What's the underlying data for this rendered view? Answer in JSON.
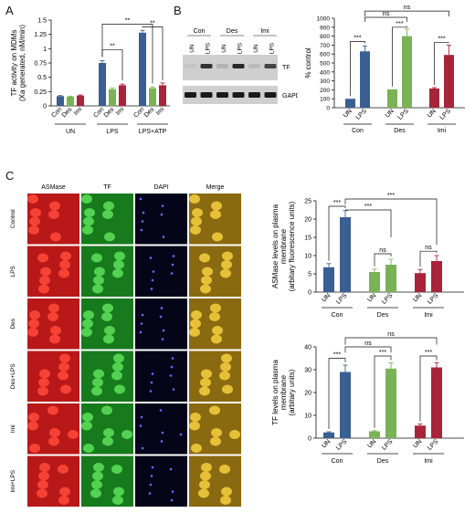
{
  "panels": {
    "A": "A",
    "B": "B",
    "C": "C"
  },
  "colors": {
    "con": "#3a5f93",
    "des": "#7ab356",
    "imi": "#a8243a",
    "grey": "#3a3a3a"
  },
  "chart_data": [
    {
      "panel": "A",
      "type": "bar",
      "ylabel_lines": [
        "TF activity on MDMs",
        "(Xa generated, nM/min)"
      ],
      "ylim": [
        0,
        1.5
      ],
      "yticks": [
        "0",
        "0.25",
        "0.5",
        "0.75",
        "1",
        "1.25",
        "1.5"
      ],
      "categories": [
        "Con",
        "Des",
        "Imi",
        "Con",
        "Des",
        "Imi",
        "Con",
        "Des",
        "Imi"
      ],
      "groups": [
        "UN",
        "LPS",
        "LPS+ATP"
      ],
      "values": [
        0.17,
        0.16,
        0.18,
        0.75,
        0.29,
        0.36,
        1.28,
        0.31,
        0.36
      ],
      "errors": [
        0.01,
        0.01,
        0.01,
        0.04,
        0.02,
        0.02,
        0.04,
        0.02,
        0.04
      ],
      "significance": [
        "**",
        "**",
        "**"
      ]
    },
    {
      "panel": "B",
      "type": "bar",
      "ylabel": "% control",
      "ylim": [
        0,
        1000
      ],
      "yticks": [
        "0",
        "100",
        "200",
        "300",
        "400",
        "500",
        "600",
        "700",
        "800",
        "900",
        "1000"
      ],
      "categories": [
        "UN",
        "LPS",
        "UN",
        "LPS",
        "UN",
        "LPS"
      ],
      "groups": [
        "Con",
        "Des",
        "Imi"
      ],
      "values": [
        100,
        630,
        205,
        800,
        215,
        590
      ],
      "errors": [
        0,
        60,
        0,
        80,
        10,
        110
      ],
      "significance": [
        "***",
        "***",
        "***",
        "ns",
        "ns"
      ]
    },
    {
      "panel": "C1",
      "type": "bar",
      "ylabel_lines": [
        "ASMase levels on plasma",
        "membrane",
        "(arbitary fluorescence units)"
      ],
      "ylim": [
        0,
        25
      ],
      "yticks": [
        "0",
        "5",
        "10",
        "15",
        "20",
        "25"
      ],
      "categories": [
        "UN",
        "LPS",
        "UN",
        "LPS",
        "UN",
        "LPS"
      ],
      "groups": [
        "Con",
        "Des",
        "Imi"
      ],
      "values": [
        6.8,
        20.5,
        5.5,
        7.5,
        5.2,
        8.5
      ],
      "errors": [
        1.0,
        1.8,
        0.8,
        1.5,
        1.0,
        1.5
      ],
      "significance": [
        "***",
        "ns",
        "ns",
        "***",
        "***"
      ]
    },
    {
      "panel": "C2",
      "type": "bar",
      "ylabel_lines": [
        "TF levels on plasma",
        "membrane",
        "(arbitary units)"
      ],
      "ylim": [
        0,
        40
      ],
      "yticks": [
        "0",
        "10",
        "20",
        "30",
        "40"
      ],
      "categories": [
        "UN",
        "LPS",
        "UN",
        "LPS",
        "UN",
        "LPS"
      ],
      "groups": [
        "Con",
        "Des",
        "Imi"
      ],
      "values": [
        2.5,
        29,
        3,
        30.5,
        5.5,
        31
      ],
      "errors": [
        0.3,
        3,
        0.3,
        2.5,
        0.7,
        2
      ],
      "significance": [
        "***",
        "***",
        "***",
        "ns",
        "ns"
      ]
    }
  ],
  "blot": {
    "groups": [
      "Con",
      "Des",
      "Imi"
    ],
    "lanes": [
      "UN",
      "LPS",
      "UN",
      "LPS",
      "UN",
      "LPS"
    ],
    "tf_band": [
      0.05,
      0.85,
      0.15,
      0.9,
      0.1,
      0.75
    ],
    "labels": [
      "TF",
      "GAPDH"
    ]
  },
  "micrographs": {
    "columns": [
      "ASMase",
      "TF",
      "DAPI",
      "Merge"
    ],
    "rows": [
      "Control",
      "LPS",
      "Des",
      "Des+LPS",
      "Imi",
      "Imi+LPS"
    ]
  }
}
